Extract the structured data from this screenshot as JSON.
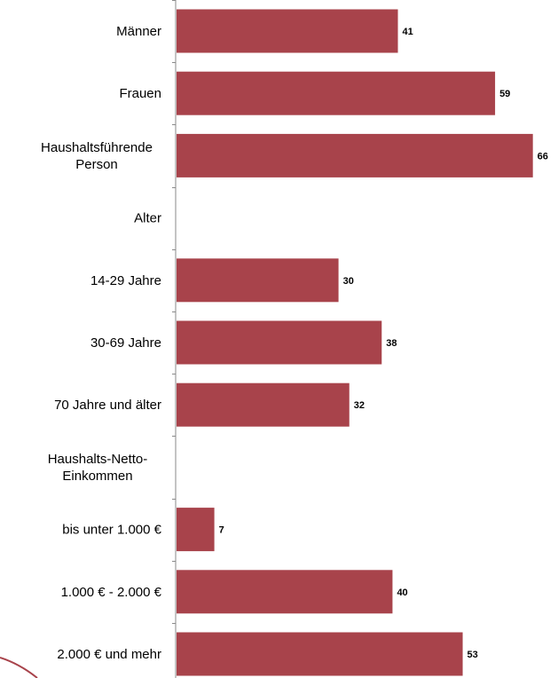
{
  "chart_data": {
    "type": "bar",
    "orientation": "horizontal",
    "categories": [
      "Männer",
      "Frauen",
      "Haushaltsführende Person",
      "Alter",
      "14-29 Jahre",
      "30-69 Jahre",
      "70 Jahre und älter",
      "Haushalts-Netto-Einkommen",
      "bis unter 1.000 €",
      "1.000 € - 2.000 €",
      "2.000 € und mehr"
    ],
    "category_lines": [
      [
        "Männer"
      ],
      [
        "Frauen"
      ],
      [
        "Haushaltsführende",
        "Person"
      ],
      [
        "Alter"
      ],
      [
        "14-29 Jahre"
      ],
      [
        "30-69 Jahre"
      ],
      [
        "70 Jahre und älter"
      ],
      [
        "Haushalts-Netto-",
        "Einkommen"
      ],
      [
        "bis unter 1.000 €"
      ],
      [
        "1.000 € - 2.000 €"
      ],
      [
        "2.000 € und mehr"
      ]
    ],
    "values": [
      41,
      59,
      66,
      null,
      30,
      38,
      32,
      null,
      7,
      40,
      53
    ],
    "value_labels": [
      "41",
      "59",
      "66",
      "",
      "30",
      "38",
      "32",
      "",
      "7",
      "40",
      "53"
    ],
    "xlim": [
      0,
      70
    ],
    "grid": false,
    "bar_color": "#a8434b",
    "axis_color": "#8a8a8a"
  }
}
